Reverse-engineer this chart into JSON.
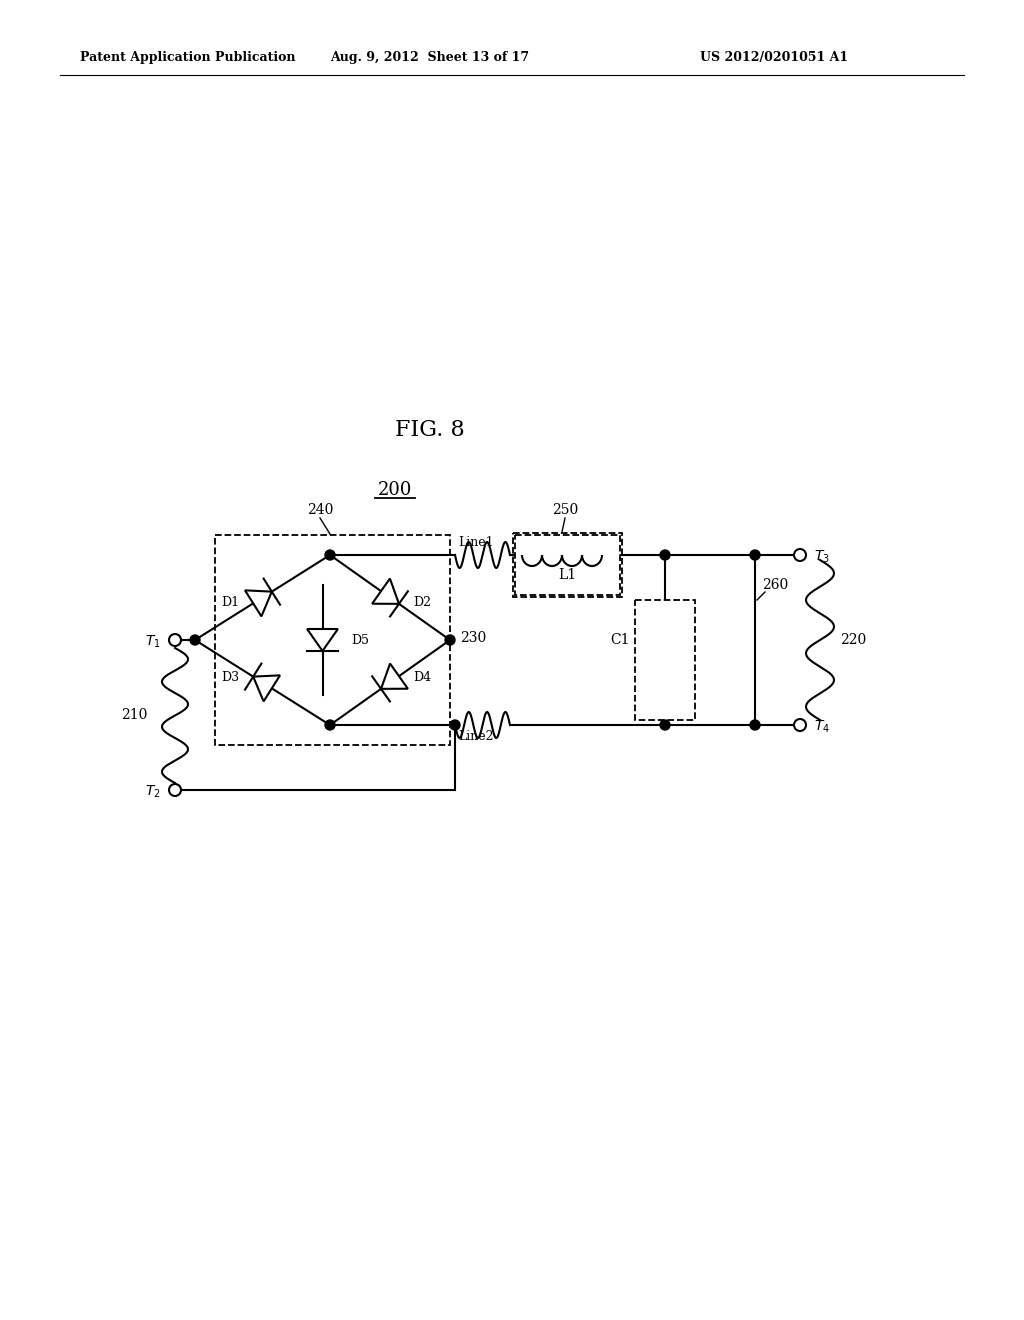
{
  "header_left": "Patent Application Publication",
  "header_mid": "Aug. 9, 2012  Sheet 13 of 17",
  "header_right": "US 2012/0201051 A1",
  "fig_label": "FIG. 8",
  "ref_num": "200",
  "bg_color": "#ffffff"
}
